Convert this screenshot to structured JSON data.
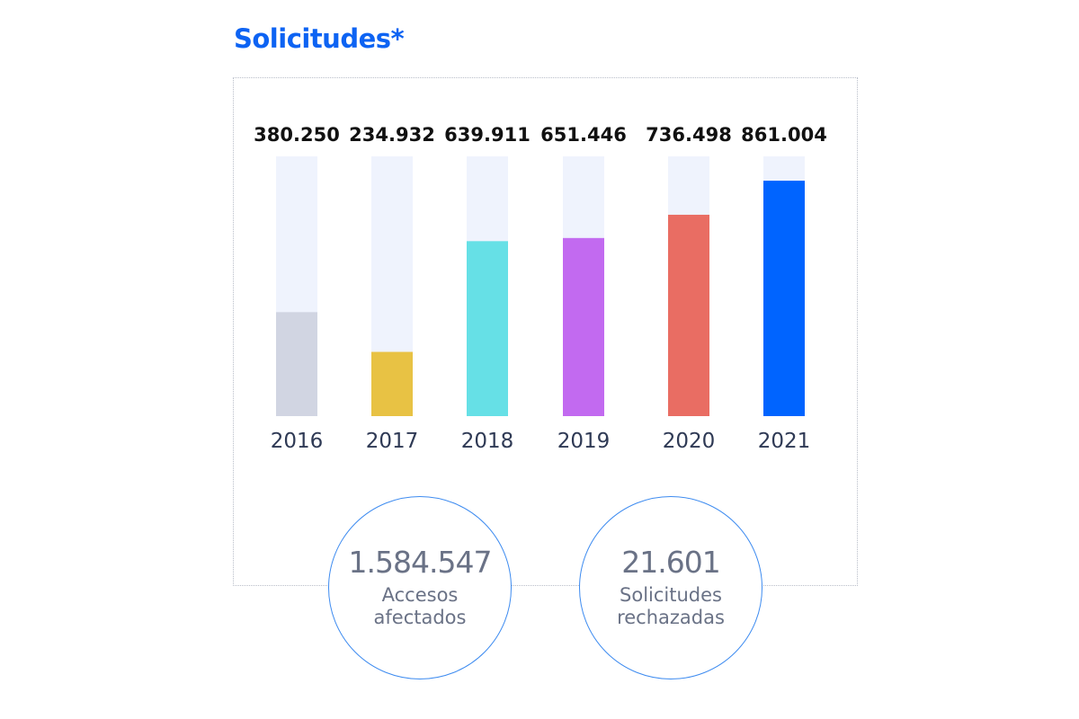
{
  "chart_data": {
    "type": "bar",
    "title": "Solicitudes*",
    "categories": [
      "2016",
      "2017",
      "2018",
      "2019",
      "2020",
      "2021"
    ],
    "values": [
      380250,
      234932,
      639911,
      651446,
      736498,
      861004
    ],
    "value_labels": [
      "380.250",
      "234.932",
      "639.911",
      "651.446",
      "736.498",
      "861.004"
    ],
    "colors": [
      "#d1d5e2",
      "#e8c244",
      "#66e0e6",
      "#c26af0",
      "#e96d63",
      "#0064ff"
    ],
    "track_color": "#eff3fd",
    "ylim": [
      0,
      950000
    ],
    "grid": false,
    "legend": "none"
  },
  "colors": {
    "title": "#0d63f3",
    "circle_border": "#3d8bf0",
    "stat_text": "#6a7286"
  },
  "stats": [
    {
      "value": "1.584.547",
      "label": "Accesos afectados"
    },
    {
      "value": "21.601",
      "label": "Solicitudes rechazadas"
    }
  ]
}
